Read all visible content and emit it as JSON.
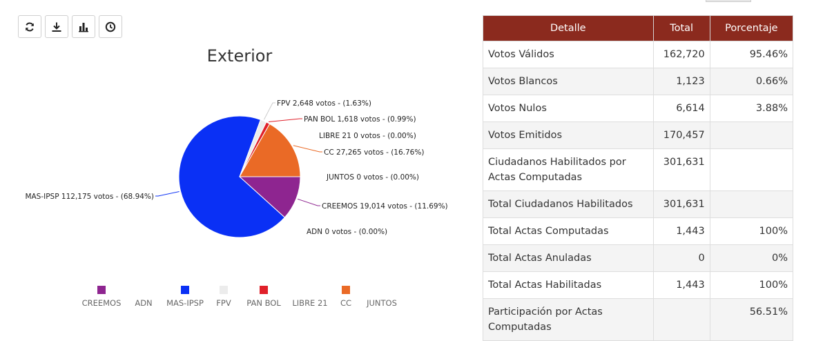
{
  "toolbar": {
    "buttons": [
      {
        "name": "refresh-icon"
      },
      {
        "name": "download-icon"
      },
      {
        "name": "bar-chart-icon"
      },
      {
        "name": "clock-icon"
      }
    ]
  },
  "chart_data": {
    "type": "pie",
    "title": "Exterior",
    "slices": [
      {
        "name": "CREEMOS",
        "votes": 19014,
        "percent": 11.69,
        "label": "CREEMOS 19,014 votos - (11.69%)",
        "color": "#8e2590"
      },
      {
        "name": "ADN",
        "votes": 0,
        "percent": 0.0,
        "label": "ADN 0 votos - (0.00%)",
        "color": "#1a1a1a"
      },
      {
        "name": "MAS-IPSP",
        "votes": 112175,
        "percent": 68.94,
        "label": "MAS-IPSP 112,175 votos - (68.94%)",
        "color": "#0a30f5"
      },
      {
        "name": "FPV",
        "votes": 2648,
        "percent": 1.63,
        "label": "FPV 2,648 votos - (1.63%)",
        "color": "#ececec"
      },
      {
        "name": "PAN BOL",
        "votes": 1618,
        "percent": 0.99,
        "label": "PAN BOL 1,618 votos - (0.99%)",
        "color": "#e0202a"
      },
      {
        "name": "LIBRE 21",
        "votes": 0,
        "percent": 0.0,
        "label": "LIBRE 21 0 votos - (0.00%)",
        "color": "#c8c8c8"
      },
      {
        "name": "CC",
        "votes": 27265,
        "percent": 16.76,
        "label": "CC 27,265 votos - (16.76%)",
        "color": "#ea6a26"
      },
      {
        "name": "JUNTOS",
        "votes": 0,
        "percent": 0.0,
        "label": "JUNTOS 0 votos - (0.00%)",
        "color": "#1a1a1a"
      }
    ],
    "legend": {
      "position": "bottom",
      "items": [
        {
          "name": "CREEMOS",
          "color": "#8e2590",
          "marker": true
        },
        {
          "name": "ADN",
          "marker": false
        },
        {
          "name": "MAS-IPSP",
          "color": "#0a30f5",
          "marker": true
        },
        {
          "name": "FPV",
          "color": "#ececec",
          "marker": true
        },
        {
          "name": "PAN BOL",
          "color": "#e0202a",
          "marker": true
        },
        {
          "name": "LIBRE 21",
          "marker": false
        },
        {
          "name": "CC",
          "color": "#ea6a26",
          "marker": true
        },
        {
          "name": "JUNTOS",
          "marker": false
        }
      ]
    }
  },
  "table": {
    "header_bg": "#8b2a1e",
    "headers": [
      "Detalle",
      "Total",
      "Porcentaje"
    ],
    "rows": [
      {
        "detalle": "Votos Válidos",
        "total": "162,720",
        "porcentaje": "95.46%"
      },
      {
        "detalle": "Votos Blancos",
        "total": "1,123",
        "porcentaje": "0.66%"
      },
      {
        "detalle": "Votos Nulos",
        "total": "6,614",
        "porcentaje": "3.88%"
      },
      {
        "detalle": "Votos Emitidos",
        "total": "170,457",
        "porcentaje": ""
      },
      {
        "detalle": "Ciudadanos Habilitados por Actas Computadas",
        "total": "301,631",
        "porcentaje": ""
      },
      {
        "detalle": "Total Ciudadanos Habilitados",
        "total": "301,631",
        "porcentaje": ""
      },
      {
        "detalle": "Total Actas Computadas",
        "total": "1,443",
        "porcentaje": "100%"
      },
      {
        "detalle": "Total Actas Anuladas",
        "total": "0",
        "porcentaje": "0%"
      },
      {
        "detalle": "Total Actas Habilitadas",
        "total": "1,443",
        "porcentaje": "100%"
      },
      {
        "detalle": "Participación por Actas Computadas",
        "total": "",
        "porcentaje": "56.51%"
      }
    ]
  }
}
